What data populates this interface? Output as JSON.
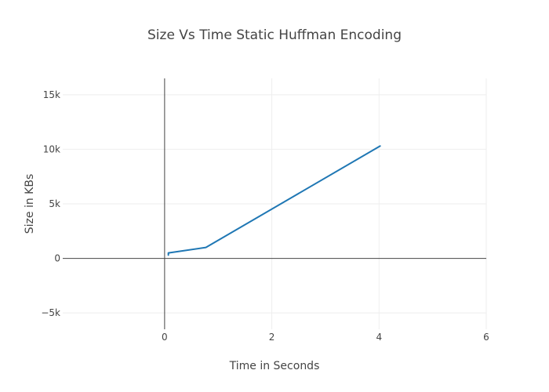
{
  "chart_data": {
    "type": "line",
    "title": "Size Vs Time Static Huffman Encoding",
    "xlabel": "Time in Seconds",
    "ylabel": "Size in KBs",
    "xlim": [
      -1.9,
      6
    ],
    "ylim": [
      -6500,
      16500
    ],
    "x_ticks": [
      0,
      2,
      4,
      6
    ],
    "x_tick_labels": [
      "0",
      "2",
      "4",
      "6"
    ],
    "y_ticks": [
      -5000,
      0,
      5000,
      10000,
      15000
    ],
    "y_tick_labels": [
      "−5k",
      "0",
      "5k",
      "10k",
      "15k"
    ],
    "grid": true,
    "legend": "none",
    "series": [
      {
        "color": "#1f77b4",
        "x": [
          0.07,
          0.07,
          0.77,
          4.02
        ],
        "y": [
          300,
          500,
          1000,
          10300
        ]
      }
    ]
  }
}
